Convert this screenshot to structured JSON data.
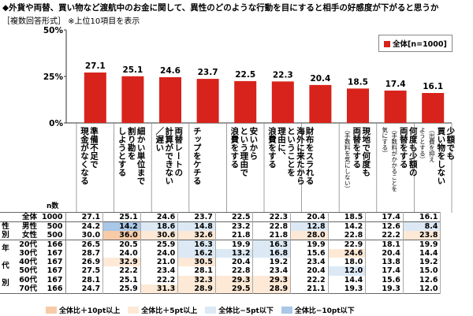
{
  "title": "◆外貨や両替、買い物など渡航中のお金に関して、異性のどのような行動を目にすると相手の好感度が下がると思うか",
  "subtitle": "［複数回答形式］ ※上位10項目を表示",
  "n_column_label": "n数",
  "colors": {
    "bar": "#d7231b",
    "highlight_plus10": "#f8cba8",
    "highlight_plus5": "#fde9d6",
    "highlight_minus5": "#dce9f5",
    "highlight_minus10": "#a9c7e6"
  },
  "bottom_legend": [
    {
      "label": "全体比＋10pt以上",
      "color": "#f8cba8"
    },
    {
      "label": "全体比＋5pt以上",
      "color": "#fde9d6"
    },
    {
      "label": "全体比−5pt以下",
      "color": "#dce9f5"
    },
    {
      "label": "全体比−10pt以下",
      "color": "#a9c7e6"
    }
  ],
  "chart_data": {
    "type": "bar",
    "title": "◆外貨や両替、買い物など渡航中のお金に関して、異性のどのような行動を目にすると相手の好感度が下がると思うか",
    "ylim": [
      0,
      50
    ],
    "yticks": [
      "0%",
      "25%",
      "50%"
    ],
    "legend": "全体[n=1000]",
    "legend_position": "top-right",
    "categories": [
      {
        "label": "準備不足で\n現金がなくなる",
        "note": ""
      },
      {
        "label": "細かい単位まで\n割り勘を\nしようとする",
        "note": ""
      },
      {
        "label": "両替レートの\n計算ができない\n／遅い",
        "note": ""
      },
      {
        "label": "チップをケチる",
        "note": ""
      },
      {
        "label": "安いから\nという理由で\n浪費をする",
        "note": ""
      },
      {
        "label": "海外に来たから\nということを\n理由に、\n浪費をする",
        "note": ""
      },
      {
        "label": "財布をスラれる",
        "note": ""
      },
      {
        "label": "現地で何度も\n両替をする",
        "note": "（手数料を気にしない）"
      },
      {
        "label": "何度も少額の\n両替をする",
        "note": "（手数料がかかることを\n気にする）"
      },
      {
        "label": "少額でも\n買い物をしない",
        "note": "（出費を抑え\nようとする）"
      }
    ],
    "values": [
      27.1,
      25.1,
      24.6,
      23.7,
      22.5,
      22.3,
      20.4,
      18.5,
      17.4,
      16.1
    ],
    "table": {
      "groups": [
        {
          "label": "",
          "rows": [
            0
          ]
        },
        {
          "label": "性別",
          "rows": [
            1,
            2
          ]
        },
        {
          "label": "年代別",
          "rows": [
            3,
            4,
            5,
            6,
            7,
            8
          ]
        }
      ],
      "rows": [
        {
          "label": "全体",
          "n": "1000",
          "values": [
            "27.1",
            "25.1",
            "24.6",
            "23.7",
            "22.5",
            "22.3",
            "20.4",
            "18.5",
            "17.4",
            "16.1"
          ],
          "hl": [
            "",
            "",
            "",
            "",
            "",
            "",
            "",
            "",
            "",
            ""
          ]
        },
        {
          "label": "男性",
          "n": "500",
          "values": [
            "24.2",
            "14.2",
            "18.6",
            "14.8",
            "23.2",
            "22.8",
            "12.8",
            "14.2",
            "12.6",
            "8.4"
          ],
          "hl": [
            "",
            "m10",
            "m5",
            "m5",
            "",
            "",
            "m5",
            "",
            "",
            "m5"
          ]
        },
        {
          "label": "女性",
          "n": "500",
          "values": [
            "30.0",
            "36.0",
            "30.6",
            "32.6",
            "21.8",
            "21.8",
            "28.0",
            "22.8",
            "22.2",
            "23.8"
          ],
          "hl": [
            "",
            "p10",
            "p5",
            "p5",
            "",
            "",
            "p5",
            "",
            "",
            "p5"
          ]
        },
        {
          "label": "20代",
          "n": "166",
          "values": [
            "26.5",
            "20.5",
            "25.9",
            "16.3",
            "19.9",
            "16.3",
            "19.9",
            "22.9",
            "18.1",
            "19.9"
          ],
          "hl": [
            "",
            "",
            "",
            "m5",
            "",
            "m5",
            "",
            "",
            "",
            ""
          ]
        },
        {
          "label": "30代",
          "n": "167",
          "values": [
            "28.7",
            "24.0",
            "24.0",
            "16.2",
            "13.2",
            "16.8",
            "15.6",
            "24.6",
            "20.4",
            "14.4"
          ],
          "hl": [
            "",
            "",
            "",
            "m5",
            "m5",
            "m5",
            "",
            "p5",
            "",
            ""
          ]
        },
        {
          "label": "40代",
          "n": "167",
          "values": [
            "26.9",
            "32.9",
            "21.0",
            "30.5",
            "20.4",
            "19.2",
            "23.4",
            "18.0",
            "13.8",
            "19.2"
          ],
          "hl": [
            "",
            "p5",
            "",
            "p5",
            "",
            "",
            "",
            "",
            "",
            ""
          ]
        },
        {
          "label": "50代",
          "n": "167",
          "values": [
            "27.5",
            "22.2",
            "23.4",
            "28.1",
            "22.8",
            "23.4",
            "20.4",
            "12.0",
            "17.4",
            "15.0"
          ],
          "hl": [
            "",
            "",
            "",
            "",
            "",
            "",
            "",
            "m5",
            "",
            ""
          ]
        },
        {
          "label": "60代",
          "n": "167",
          "values": [
            "28.1",
            "25.1",
            "22.2",
            "32.3",
            "29.3",
            "29.3",
            "22.2",
            "14.4",
            "15.6",
            "12.6"
          ],
          "hl": [
            "",
            "",
            "",
            "p5",
            "p5",
            "p5",
            "",
            "",
            "",
            ""
          ]
        },
        {
          "label": "70代",
          "n": "166",
          "values": [
            "24.7",
            "25.9",
            "31.3",
            "28.9",
            "29.5",
            "28.9",
            "21.1",
            "19.3",
            "19.3",
            "12.0"
          ],
          "hl": [
            "",
            "",
            "p5",
            "p5",
            "p5",
            "p5",
            "",
            "",
            "",
            ""
          ]
        }
      ]
    }
  }
}
